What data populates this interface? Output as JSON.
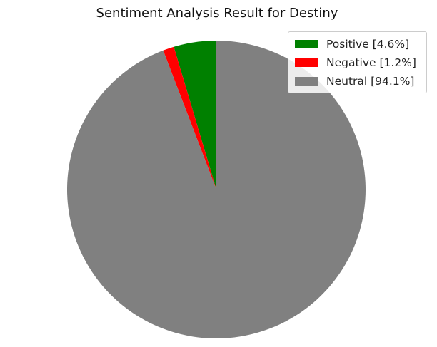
{
  "chart_data": {
    "type": "pie",
    "title": "Sentiment Analysis Result for Destiny",
    "slices": [
      {
        "label": "Positive [4.6%]",
        "value": 4.6,
        "color": "#008000"
      },
      {
        "label": "Negative [1.2%]",
        "value": 1.2,
        "color": "#ff0000"
      },
      {
        "label": "Neutral [94.1%]",
        "value": 94.1,
        "color": "#808080"
      }
    ],
    "start_angle": "top, counter-clockwise",
    "legend_position": "top-right"
  }
}
